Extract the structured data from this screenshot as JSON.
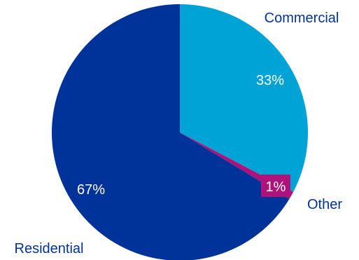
{
  "chart_data": {
    "type": "pie",
    "slices": [
      {
        "label": "Commercial",
        "value": 33,
        "value_label": "33%",
        "color": "#00a3d6"
      },
      {
        "label": "Other",
        "value": 1,
        "value_label": "1%",
        "color": "#b0127c"
      },
      {
        "label": "Residential",
        "value": 67,
        "value_label": "67%",
        "color": "#003399"
      }
    ],
    "start_angle_deg": 0,
    "direction": "clockwise",
    "label_color": "#003399",
    "value_label_color": "#ffffff",
    "legend": "none"
  }
}
